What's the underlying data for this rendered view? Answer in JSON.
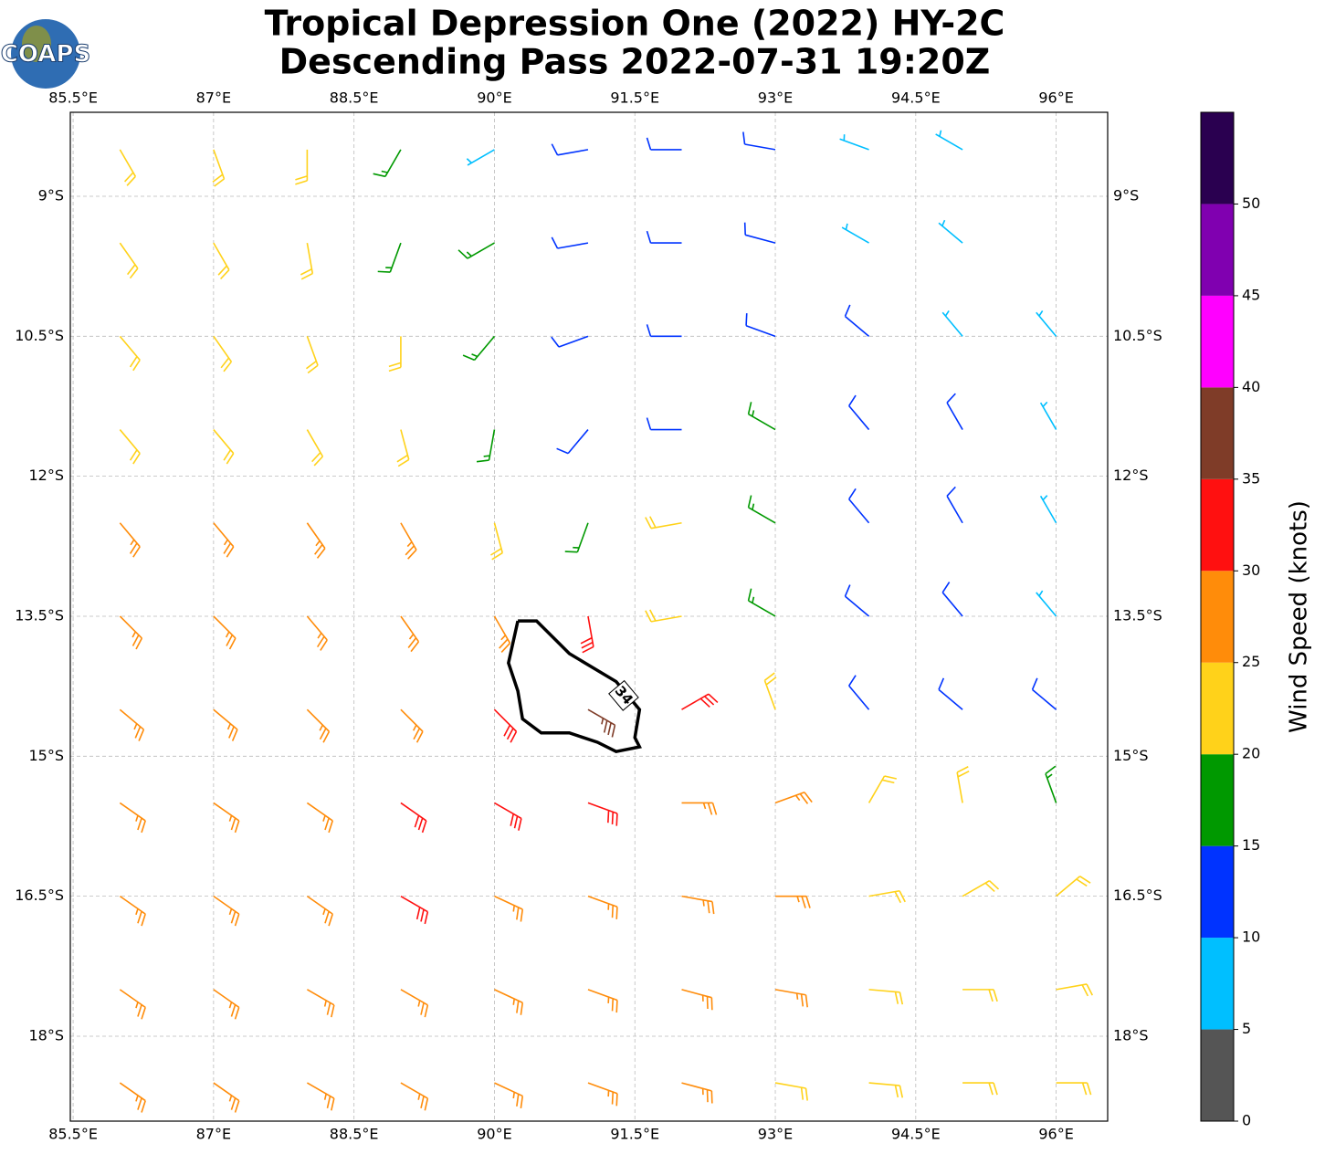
{
  "chart_data": {
    "type": "barbs",
    "title": "Tropical Depression One (2022) HY-2C",
    "subtitle": "Descending Pass 2022-07-31 19:20Z",
    "logo": "COAPS",
    "xlim": [
      85.47,
      96.55
    ],
    "ylim": [
      -18.91,
      -8.1
    ],
    "grid": true,
    "xticks": [
      {
        "value": 85.5,
        "label": "85.5°E"
      },
      {
        "value": 87,
        "label": "87°E"
      },
      {
        "value": 88.5,
        "label": "88.5°E"
      },
      {
        "value": 90,
        "label": "90°E"
      },
      {
        "value": 91.5,
        "label": "91.5°E"
      },
      {
        "value": 93,
        "label": "93°E"
      },
      {
        "value": 94.5,
        "label": "94.5°E"
      },
      {
        "value": 96,
        "label": "96°E"
      }
    ],
    "yticks": [
      {
        "value": -9,
        "label": "9°S"
      },
      {
        "value": -10.5,
        "label": "10.5°S"
      },
      {
        "value": -12,
        "label": "12°S"
      },
      {
        "value": -13.5,
        "label": "13.5°S"
      },
      {
        "value": -15,
        "label": "15°S"
      },
      {
        "value": -16.5,
        "label": "16.5°S"
      },
      {
        "value": -18,
        "label": "18°S"
      }
    ],
    "barbs": {
      "lon": [
        86,
        87,
        88,
        89,
        90,
        91,
        92,
        93,
        94,
        95,
        96
      ],
      "lat": [
        -8.5,
        -9.5,
        -10.5,
        -11.5,
        -12.5,
        -13.5,
        -14.5,
        -15.5,
        -16.5,
        -17.5,
        -18.5
      ],
      "speed": [
        [
          22,
          22,
          20,
          18,
          8,
          10,
          12,
          12,
          8,
          8,
          null
        ],
        [
          23,
          22,
          22,
          18,
          15,
          12,
          12,
          12,
          8,
          8,
          null
        ],
        [
          24,
          23,
          22,
          22,
          17,
          12,
          12,
          12,
          10,
          8,
          8
        ],
        [
          24,
          23,
          23,
          22,
          18,
          14,
          12,
          17,
          14,
          12,
          8
        ],
        [
          27,
          27,
          26,
          25,
          22,
          18,
          20,
          18,
          13,
          10,
          8
        ],
        [
          27,
          27,
          27,
          26,
          27,
          32,
          24,
          18,
          13,
          10,
          8
        ],
        [
          28,
          28,
          28,
          28,
          32,
          37,
          30,
          20,
          13,
          12,
          12
        ],
        [
          27,
          28,
          28,
          32,
          33,
          32,
          28,
          26,
          23,
          20,
          17
        ],
        [
          27,
          27,
          28,
          30,
          28,
          28,
          27,
          25,
          23,
          22,
          22
        ],
        [
          27,
          27,
          27,
          27,
          27,
          27,
          26,
          25,
          23,
          23,
          22
        ],
        [
          27,
          27,
          27,
          27,
          27,
          26,
          26,
          24,
          23,
          22,
          22
        ]
      ],
      "direction": [
        [
          150,
          160,
          180,
          210,
          240,
          260,
          270,
          280,
          290,
          300,
          null
        ],
        [
          145,
          150,
          170,
          200,
          240,
          260,
          270,
          285,
          300,
          310,
          null
        ],
        [
          140,
          145,
          160,
          180,
          220,
          250,
          270,
          290,
          310,
          320,
          320
        ],
        [
          140,
          140,
          150,
          165,
          190,
          220,
          270,
          300,
          320,
          330,
          330
        ],
        [
          140,
          140,
          145,
          150,
          165,
          200,
          260,
          300,
          320,
          330,
          330
        ],
        [
          135,
          135,
          140,
          145,
          150,
          170,
          260,
          300,
          310,
          320,
          320
        ],
        [
          130,
          130,
          135,
          135,
          135,
          120,
          60,
          340,
          320,
          310,
          310
        ],
        [
          125,
          125,
          125,
          125,
          120,
          110,
          90,
          70,
          30,
          350,
          340
        ],
        [
          125,
          125,
          125,
          120,
          115,
          110,
          100,
          90,
          80,
          60,
          50
        ],
        [
          125,
          125,
          120,
          120,
          115,
          110,
          105,
          100,
          95,
          90,
          80
        ],
        [
          125,
          125,
          120,
          120,
          115,
          110,
          105,
          100,
          95,
          90,
          90
        ]
      ]
    },
    "contour": {
      "label": "34",
      "lon": [
        90.25,
        90.45,
        90.8,
        91.3,
        91.55,
        91.5,
        91.55,
        91.3,
        91.1,
        90.8,
        90.5,
        90.3,
        90.25,
        90.15,
        90.25
      ],
      "lat": [
        -13.55,
        -13.55,
        -13.9,
        -14.2,
        -14.5,
        -14.8,
        -14.9,
        -14.95,
        -14.85,
        -14.75,
        -14.75,
        -14.6,
        -14.3,
        -14.0,
        -13.55
      ],
      "label_lon": 91.38,
      "label_lat": -14.35
    },
    "colorbar": {
      "label": "Wind Speed (knots)",
      "bounds": [
        0,
        5,
        10,
        15,
        20,
        25,
        30,
        35,
        40,
        45,
        50,
        55
      ],
      "colors": [
        "#555555",
        "#00bfff",
        "#0033ff",
        "#009900",
        "#ffd21a",
        "#ff8c0a",
        "#ff1010",
        "#7f3c28",
        "#ff00ff",
        "#8000b0",
        "#2a0050"
      ],
      "ticks": [
        0,
        5,
        10,
        15,
        20,
        25,
        30,
        35,
        40,
        45,
        50
      ]
    }
  }
}
